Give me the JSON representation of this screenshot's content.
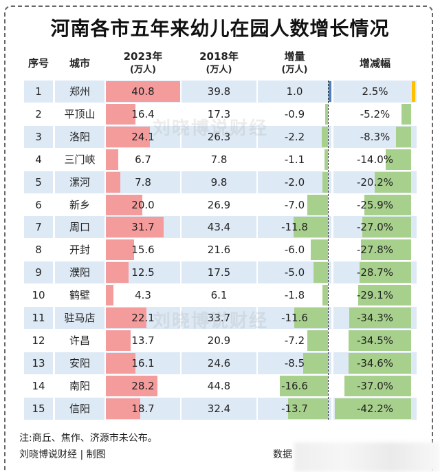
{
  "title": "河南各市五年来幼儿在园人数增长情况",
  "headers": {
    "seq": "序号",
    "city": "城市",
    "y2023": "2023年",
    "y2023_unit": "(万人)",
    "y2018": "2018年",
    "y2018_unit": "(万人)",
    "delta": "增量",
    "delta_unit": "(万人)",
    "pct": "增减幅"
  },
  "colors": {
    "row_alt": "#dde9f5",
    "bar_2023": "#f49b9c",
    "bar_negative": "#a8d08d",
    "bar_delta_positive": "#4f81bd",
    "bar_pct_positive": "#ffc000"
  },
  "rows": [
    {
      "seq": "1",
      "city": "郑州",
      "v2023": "40.8",
      "v2018": "39.8",
      "delta": "1.0",
      "pct": "2.5%"
    },
    {
      "seq": "2",
      "city": "平顶山",
      "v2023": "16.4",
      "v2018": "17.3",
      "delta": "-0.9",
      "pct": "-5.2%"
    },
    {
      "seq": "3",
      "city": "洛阳",
      "v2023": "24.1",
      "v2018": "26.3",
      "delta": "-2.2",
      "pct": "-8.3%"
    },
    {
      "seq": "4",
      "city": "三门峡",
      "v2023": "6.7",
      "v2018": "7.8",
      "delta": "-1.1",
      "pct": "-14.0%"
    },
    {
      "seq": "5",
      "city": "漯河",
      "v2023": "7.8",
      "v2018": "9.8",
      "delta": "-2.0",
      "pct": "-20.2%"
    },
    {
      "seq": "6",
      "city": "新乡",
      "v2023": "20.0",
      "v2018": "26.9",
      "delta": "-7.0",
      "pct": "-25.9%"
    },
    {
      "seq": "7",
      "city": "周口",
      "v2023": "31.7",
      "v2018": "43.4",
      "delta": "-11.8",
      "pct": "-27.0%"
    },
    {
      "seq": "8",
      "city": "开封",
      "v2023": "15.6",
      "v2018": "21.6",
      "delta": "-6.0",
      "pct": "-27.8%"
    },
    {
      "seq": "9",
      "city": "濮阳",
      "v2023": "12.5",
      "v2018": "17.5",
      "delta": "-5.0",
      "pct": "-28.7%"
    },
    {
      "seq": "10",
      "city": "鹤壁",
      "v2023": "4.3",
      "v2018": "6.1",
      "delta": "-1.8",
      "pct": "-29.1%"
    },
    {
      "seq": "11",
      "city": "驻马店",
      "v2023": "22.1",
      "v2018": "33.7",
      "delta": "-11.6",
      "pct": "-34.3%"
    },
    {
      "seq": "12",
      "city": "许昌",
      "v2023": "13.7",
      "v2018": "20.9",
      "delta": "-7.2",
      "pct": "-34.5%"
    },
    {
      "seq": "13",
      "city": "安阳",
      "v2023": "16.1",
      "v2018": "24.6",
      "delta": "-8.5",
      "pct": "-34.6%"
    },
    {
      "seq": "14",
      "city": "南阳",
      "v2023": "28.2",
      "v2018": "44.8",
      "delta": "-16.6",
      "pct": "-37.0%"
    },
    {
      "seq": "15",
      "city": "信阳",
      "v2023": "18.7",
      "v2018": "32.4",
      "delta": "-13.7",
      "pct": "-42.2%"
    }
  ],
  "watermark": "刘晓博说财经",
  "note": "注:商丘、焦作、济源市未公布。",
  "credit": "刘晓博说财经 | 制图",
  "source_label": "数据"
}
